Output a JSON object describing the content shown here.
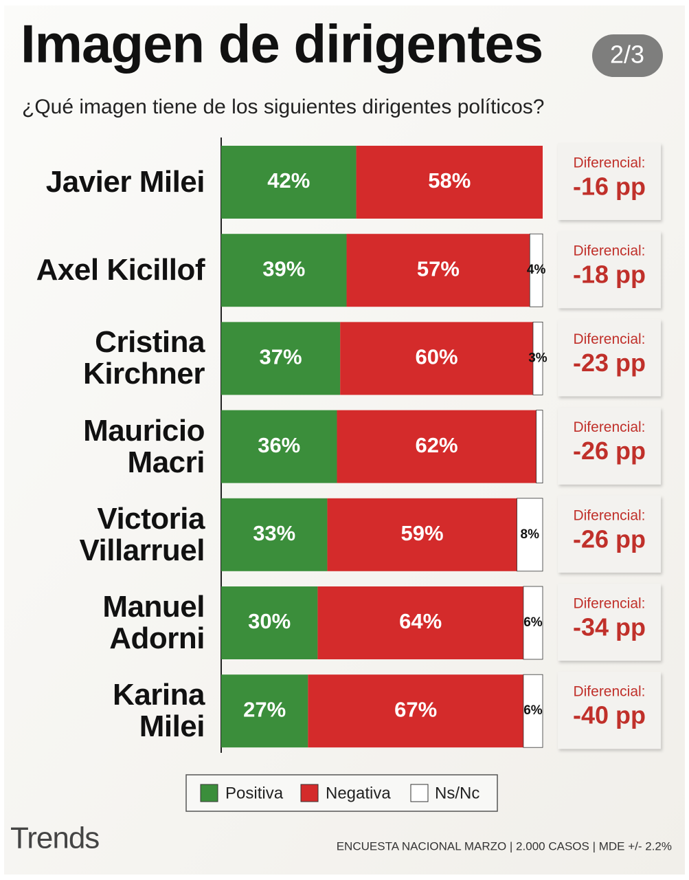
{
  "chart_data": {
    "type": "stacked-bar-horizontal",
    "title": "Imagen de dirigentes",
    "subtitle": "¿Qué imagen tiene de los siguientes dirigentes políticos?",
    "categories": [
      "Javier Milei",
      "Axel Kicillof",
      "Cristina\nKirchner",
      "Mauricio\nMacri",
      "Victoria\nVillarruel",
      "Manuel\nAdorni",
      "Karina\nMilei"
    ],
    "series": [
      {
        "name": "Positiva",
        "color": "#3b8e3b",
        "values": [
          42,
          39,
          37,
          36,
          33,
          30,
          27
        ],
        "value_labels": [
          "42%",
          "39%",
          "37%",
          "36%",
          "33%",
          "30%",
          "27%"
        ]
      },
      {
        "name": "Negativa",
        "color": "#d42b2b",
        "values": [
          58,
          57,
          60,
          62,
          59,
          64,
          67
        ],
        "value_labels": [
          "58%",
          "57%",
          "60%",
          "62%",
          "59%",
          "64%",
          "67%"
        ]
      },
      {
        "name": "Ns/Nc",
        "color": "#ffffff",
        "values": [
          0,
          4,
          3,
          2,
          8,
          6,
          6
        ],
        "value_labels": [
          null,
          "4%",
          "3%",
          null,
          "8%",
          "6%",
          "6%"
        ]
      }
    ],
    "xlim": [
      0,
      100
    ],
    "differential": {
      "label": "Diferencial:",
      "values": [
        -16,
        -18,
        -23,
        -26,
        -26,
        -34,
        -40
      ],
      "value_labels": [
        "-16 pp",
        "-18 pp",
        "-23 pp",
        "-26 pp",
        "-26 pp",
        "-34 pp",
        "-40 pp"
      ]
    },
    "brand": "Trends",
    "footer": "ENCUESTA NACIONAL MARZO | 2.000 CASOS | MDE +/- 2.2%",
    "page_indicator": "2/3"
  }
}
